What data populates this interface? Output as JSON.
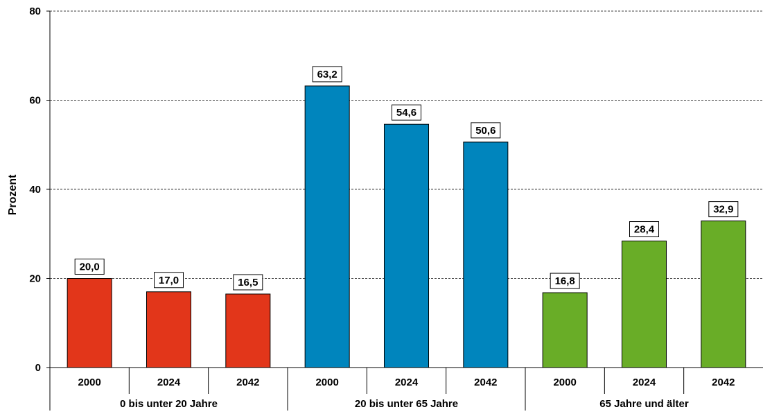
{
  "chart_data": {
    "type": "bar",
    "title": "",
    "xlabel": "",
    "ylabel": "Prozent",
    "ylim": [
      0,
      80
    ],
    "yticks": [
      0,
      20,
      40,
      60,
      80
    ],
    "grid": "horizontal dashed",
    "legend": "none",
    "groups": [
      {
        "label": "0 bis unter 20 Jahre",
        "color": "#e2361a",
        "categories": [
          "2000",
          "2024",
          "2042"
        ],
        "values": [
          20.0,
          17.0,
          16.5
        ],
        "value_labels": [
          "20,0",
          "17,0",
          "16,5"
        ]
      },
      {
        "label": "20 bis unter 65 Jahre",
        "color": "#0085bd",
        "categories": [
          "2000",
          "2024",
          "2042"
        ],
        "values": [
          63.2,
          54.6,
          50.6
        ],
        "value_labels": [
          "63,2",
          "54,6",
          "50,6"
        ]
      },
      {
        "label": "65 Jahre und älter",
        "color": "#69ad27",
        "categories": [
          "2000",
          "2024",
          "2042"
        ],
        "values": [
          16.8,
          28.4,
          32.9
        ],
        "value_labels": [
          "16,8",
          "28,4",
          "32,9"
        ]
      }
    ]
  }
}
